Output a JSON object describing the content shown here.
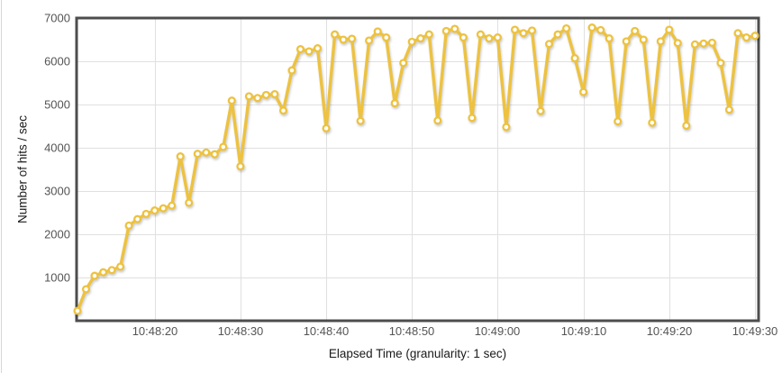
{
  "colors": {
    "line": "#edc240",
    "marker_fill": "#ffffff",
    "grid": "#e0e0e0",
    "border": "#4d4d4d",
    "tick_text": "#545454",
    "title_text": "#1a1a1a",
    "background": "#ffffff"
  },
  "chart_data": {
    "type": "line",
    "title": "",
    "xlabel": "Elapsed Time (granularity: 1 sec)",
    "ylabel": "Number of hits / sec",
    "legend": "none",
    "grid": true,
    "x_start_time": "10:48:11",
    "x_end_time": "10:49:30",
    "granularity_sec": 1,
    "x_tick_labels": [
      "10:48:20",
      "10:48:30",
      "10:48:40",
      "10:48:50",
      "10:49:00",
      "10:49:10",
      "10:49:20",
      "10:49:30"
    ],
    "first_tick_offset_sec": 9,
    "tick_step_sec": 10,
    "y_ticks": [
      1000,
      2000,
      3000,
      4000,
      5000,
      6000,
      7000
    ],
    "ylim": [
      0,
      7000
    ],
    "values": [
      230,
      730,
      1040,
      1120,
      1170,
      1250,
      2200,
      2350,
      2470,
      2550,
      2600,
      2660,
      3800,
      2730,
      3860,
      3890,
      3850,
      4020,
      5090,
      3570,
      5190,
      5150,
      5220,
      5240,
      4860,
      5790,
      6280,
      6230,
      6300,
      4450,
      6620,
      6500,
      6520,
      4620,
      6480,
      6690,
      6550,
      5030,
      5960,
      6450,
      6530,
      6620,
      4630,
      6700,
      6750,
      6550,
      4690,
      6620,
      6530,
      6550,
      4480,
      6730,
      6650,
      6710,
      4850,
      6400,
      6620,
      6760,
      6070,
      5290,
      6780,
      6720,
      6530,
      4610,
      6460,
      6700,
      6500,
      4580,
      6460,
      6730,
      6420,
      4510,
      6390,
      6410,
      6430,
      5960,
      4880,
      6650,
      6550,
      6590
    ]
  }
}
